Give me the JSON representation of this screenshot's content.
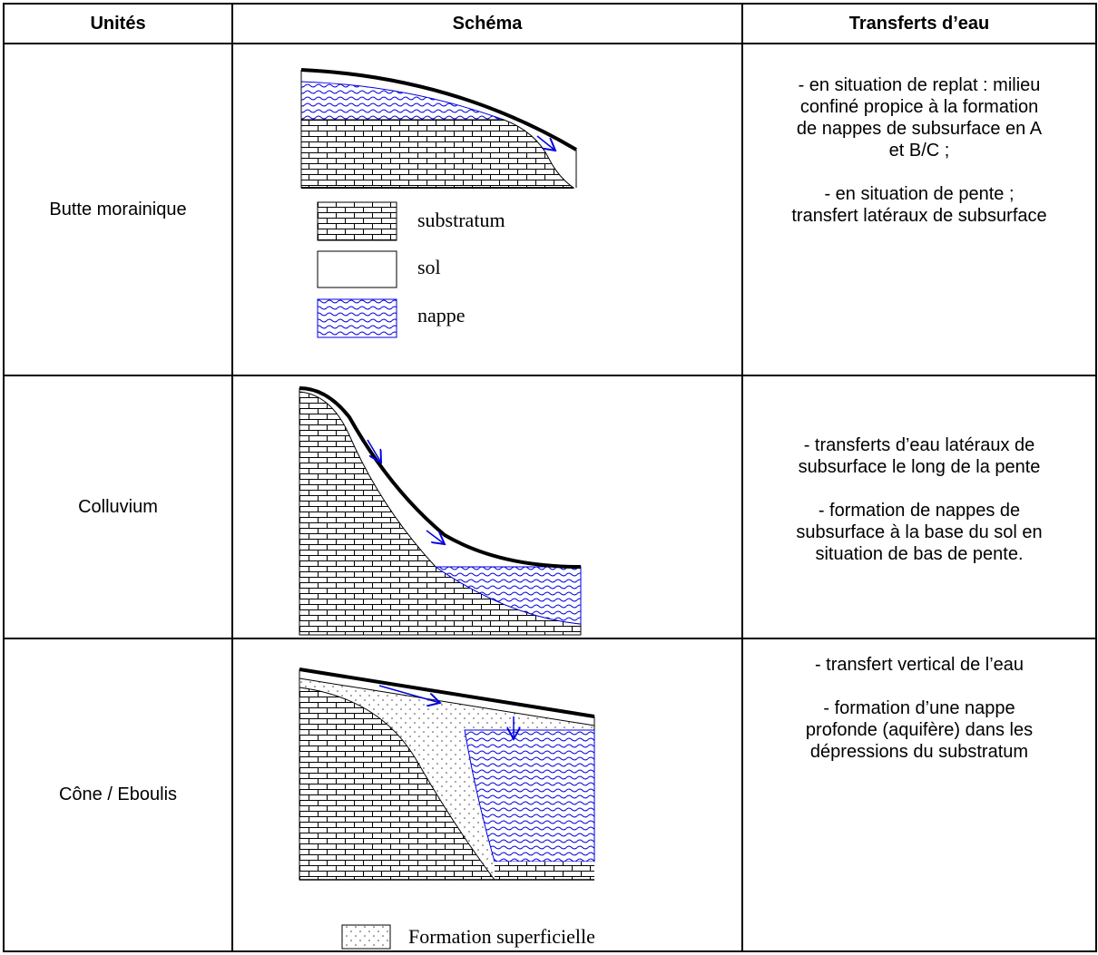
{
  "header": {
    "columns": [
      "Unités",
      "Schéma",
      "Transferts d’eau"
    ]
  },
  "rows": [
    {
      "unit": "Butte morainique",
      "legend": [
        "substratum",
        "sol",
        "nappe"
      ],
      "transfers": [
        [
          "- en situation de replat : milieu",
          "confiné propice à la formation",
          "de nappes de subsurface en A",
          "et B/C ;"
        ],
        [
          "- en situation de pente ;",
          "transfert latéraux de subsurface"
        ]
      ]
    },
    {
      "unit": "Colluvium",
      "transfers": [
        [
          "- transferts d’eau latéraux de",
          "subsurface le long de la pente"
        ],
        [
          "- formation de nappes de",
          "subsurface à la base du sol en",
          "situation de bas de pente."
        ]
      ]
    },
    {
      "unit": "Cône / Eboulis",
      "legend": [
        "Formation superficielle"
      ],
      "transfers": [
        [
          "- transfert vertical de l’eau"
        ],
        [
          "- formation d’une nappe",
          "profonde (aquifère) dans les",
          "dépressions du substratum"
        ]
      ]
    }
  ]
}
